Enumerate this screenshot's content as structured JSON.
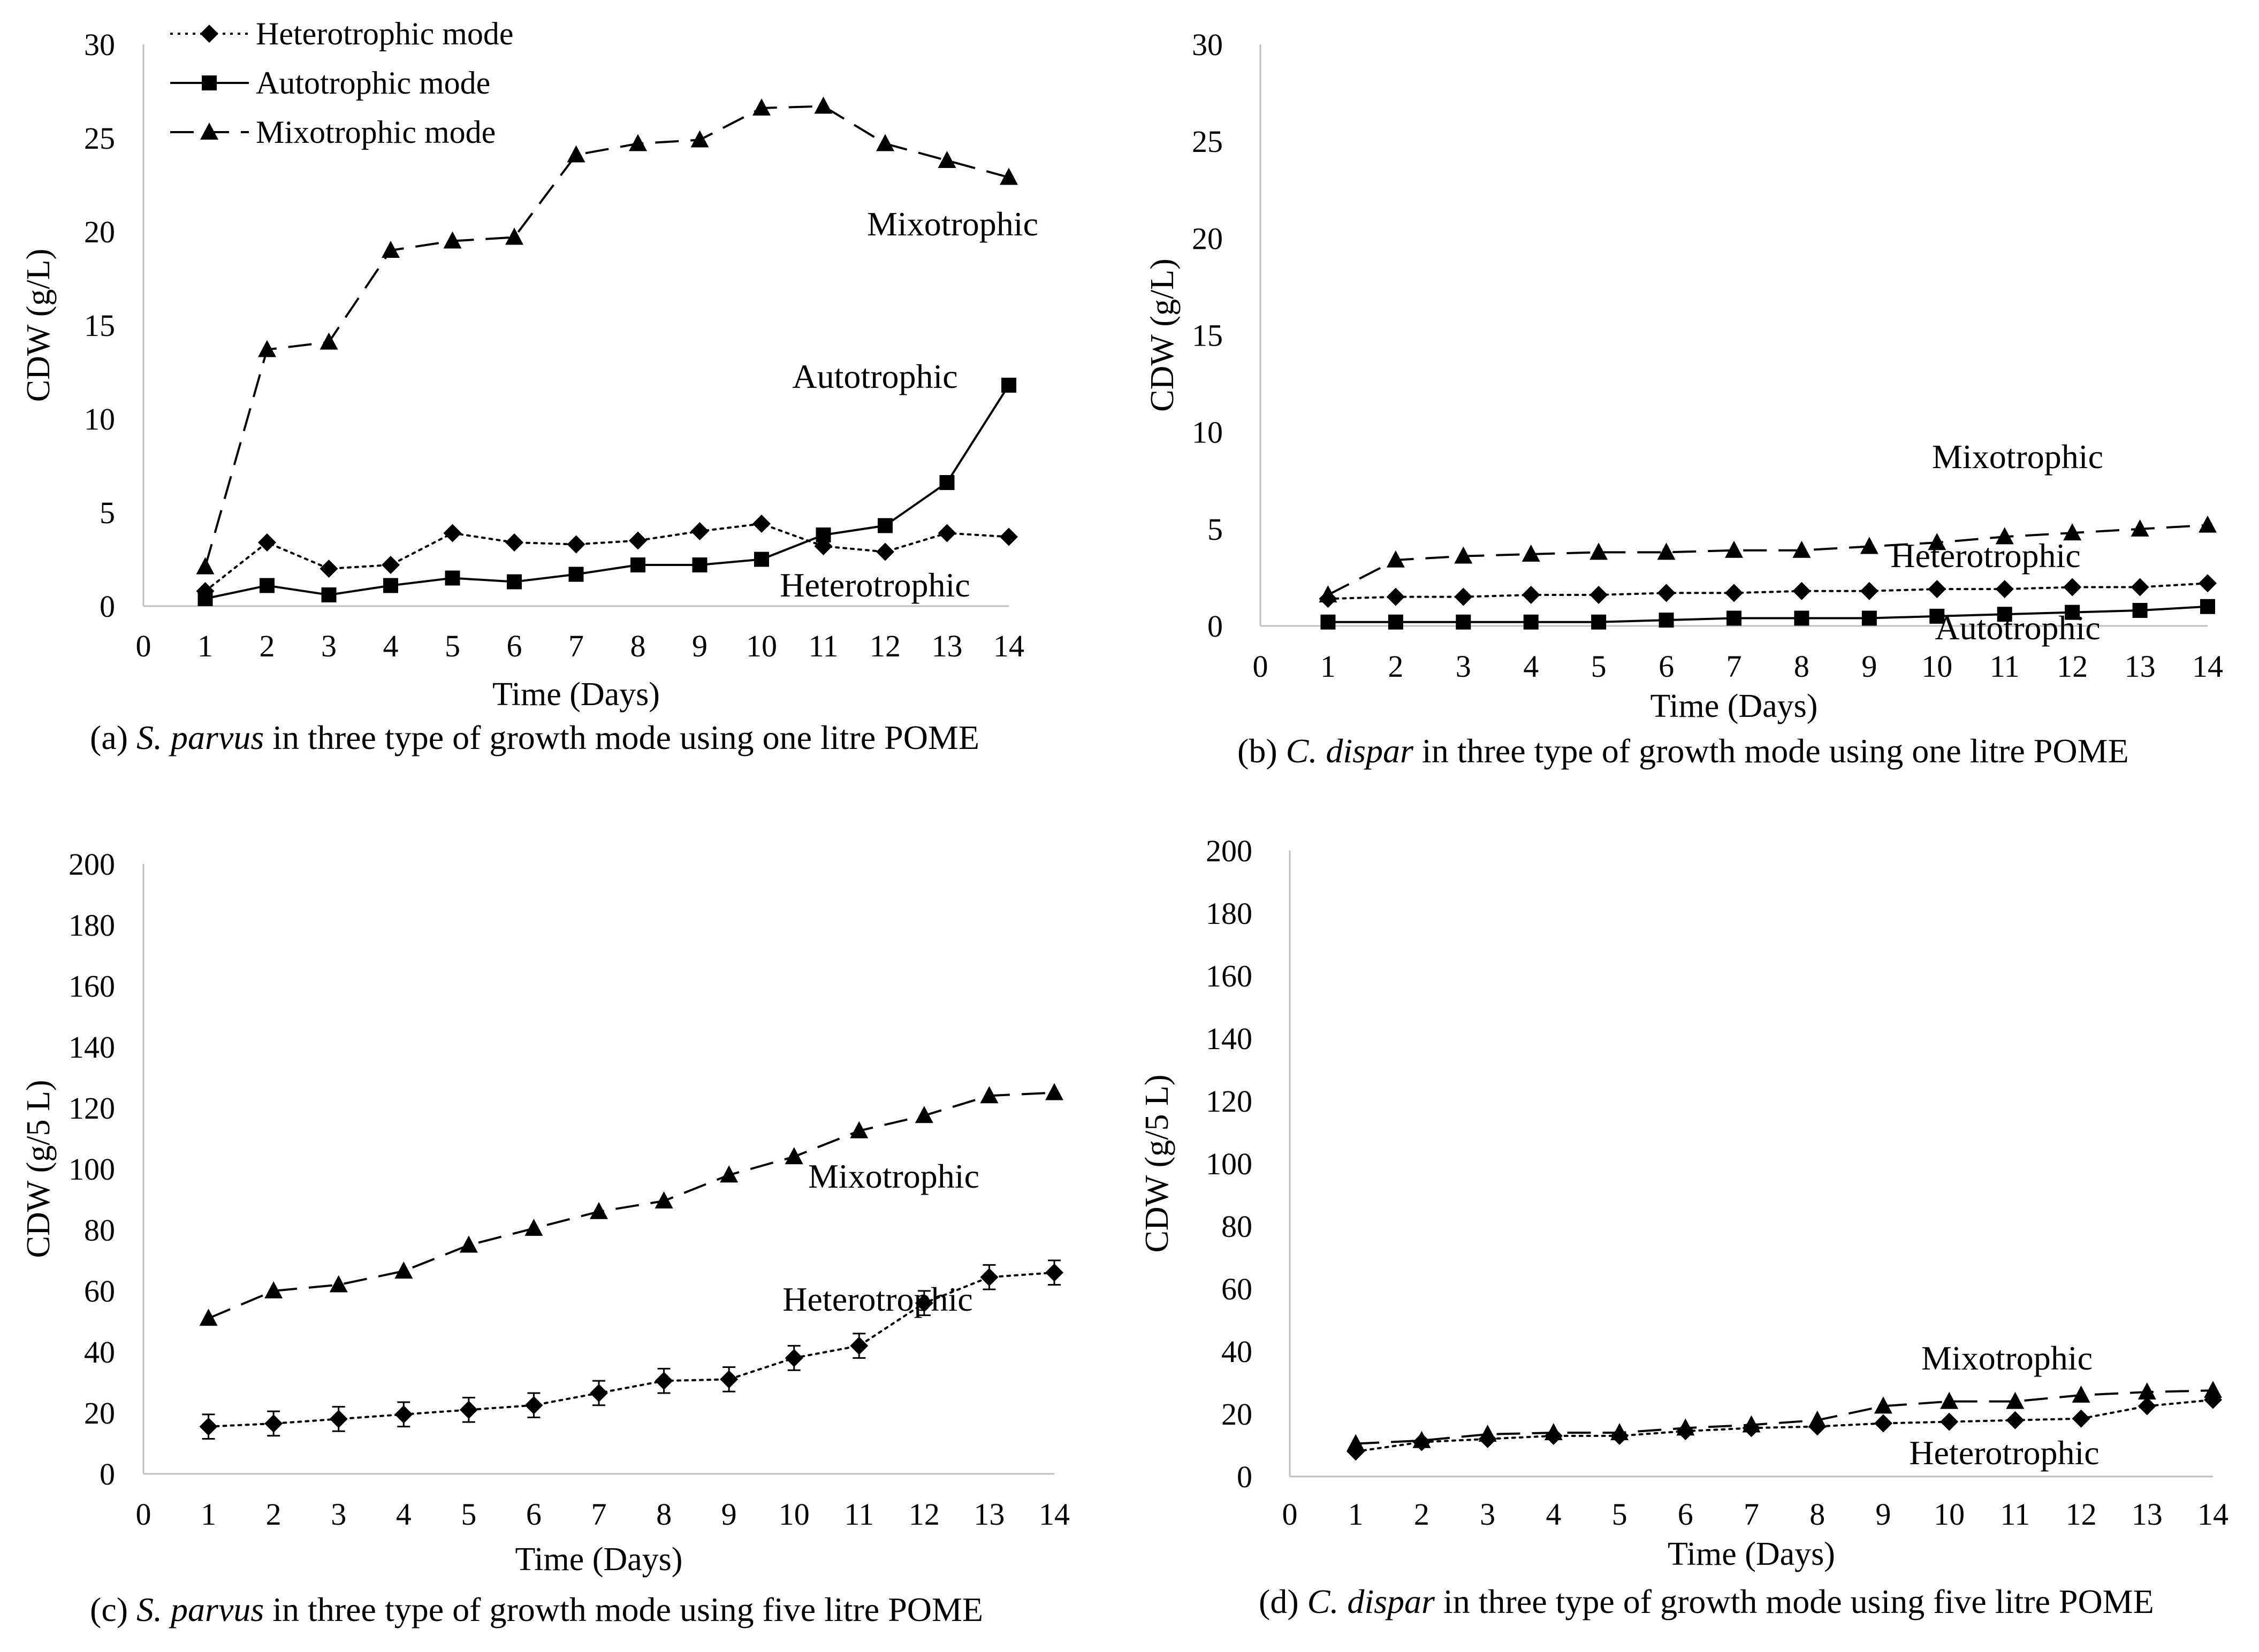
{
  "chart_data": [
    {
      "id": "a",
      "type": "line",
      "caption": {
        "prefix": "(a) ",
        "species": "S. parvus",
        "rest": " in three type of growth mode using one litre POME"
      },
      "xlabel": "Time (Days)",
      "ylabel": "CDW (g/L)",
      "xlim": [
        0,
        14
      ],
      "ylim": [
        0,
        30
      ],
      "xticks": [
        0,
        1,
        2,
        3,
        4,
        5,
        6,
        7,
        8,
        9,
        10,
        11,
        12,
        13,
        14
      ],
      "yticks": [
        0,
        5,
        10,
        15,
        20,
        25,
        30
      ],
      "x": [
        1,
        2,
        3,
        4,
        5,
        6,
        7,
        8,
        9,
        10,
        11,
        12,
        13,
        14
      ],
      "legend": [
        "Heterotrophic mode",
        "Autotrophic mode",
        "Mixotrophic mode"
      ],
      "series": [
        {
          "name": "Heterotrophic mode",
          "label": "Heterotrophic",
          "marker": "diamond",
          "dash": "dotted",
          "values": [
            0.8,
            3.4,
            2.0,
            2.2,
            3.9,
            3.4,
            3.3,
            3.5,
            4.0,
            4.4,
            3.2,
            2.9,
            3.9,
            3.7
          ]
        },
        {
          "name": "Autotrophic mode",
          "label": "Autotrophic",
          "marker": "square",
          "dash": "solid",
          "values": [
            0.4,
            1.1,
            0.6,
            1.1,
            1.5,
            1.3,
            1.7,
            2.2,
            2.2,
            2.5,
            3.8,
            4.3,
            6.6,
            11.8
          ]
        },
        {
          "name": "Mixotrophic mode",
          "label": "Mixotrophic",
          "marker": "triangle",
          "dash": "dashed",
          "values": [
            2.1,
            13.7,
            14.1,
            19.0,
            19.5,
            19.7,
            24.1,
            24.7,
            24.9,
            26.6,
            26.7,
            24.7,
            23.8,
            22.9
          ]
        }
      ]
    },
    {
      "id": "b",
      "type": "line",
      "caption": {
        "prefix": "(b) ",
        "species": "C. dispar",
        "rest": " in three type of growth mode using one litre POME"
      },
      "xlabel": "Time (Days)",
      "ylabel": "CDW (g/L)",
      "xlim": [
        0,
        14
      ],
      "ylim": [
        0,
        30
      ],
      "xticks": [
        0,
        1,
        2,
        3,
        4,
        5,
        6,
        7,
        8,
        9,
        10,
        11,
        12,
        13,
        14
      ],
      "yticks": [
        0,
        5,
        10,
        15,
        20,
        25,
        30
      ],
      "x": [
        1,
        2,
        3,
        4,
        5,
        6,
        7,
        8,
        9,
        10,
        11,
        12,
        13,
        14
      ],
      "series": [
        {
          "name": "Heterotrophic mode",
          "label": "Heterotrophic",
          "marker": "diamond",
          "dash": "dotted",
          "values": [
            1.4,
            1.5,
            1.5,
            1.6,
            1.6,
            1.7,
            1.7,
            1.8,
            1.8,
            1.9,
            1.9,
            2.0,
            2.0,
            2.2
          ]
        },
        {
          "name": "Autotrophic mode",
          "label": "Autotrophic",
          "marker": "square",
          "dash": "solid",
          "values": [
            0.2,
            0.2,
            0.2,
            0.2,
            0.2,
            0.3,
            0.4,
            0.4,
            0.4,
            0.5,
            0.6,
            0.7,
            0.8,
            1.0
          ]
        },
        {
          "name": "Mixotrophic mode",
          "label": "Mixotrophic",
          "marker": "triangle",
          "dash": "dashed",
          "values": [
            1.6,
            3.4,
            3.6,
            3.7,
            3.8,
            3.8,
            3.9,
            3.9,
            4.1,
            4.3,
            4.6,
            4.8,
            5.0,
            5.2
          ]
        }
      ]
    },
    {
      "id": "c",
      "type": "line",
      "caption": {
        "prefix": "(c) ",
        "species": "S. parvus",
        "rest": " in three type of growth mode using five litre POME"
      },
      "xlabel": "Time (Days)",
      "ylabel": "CDW (g/5 L)",
      "xlim": [
        0,
        14
      ],
      "ylim": [
        0,
        200
      ],
      "xticks": [
        0,
        1,
        2,
        3,
        4,
        5,
        6,
        7,
        8,
        9,
        10,
        11,
        12,
        13,
        14
      ],
      "yticks": [
        0,
        20,
        40,
        60,
        80,
        100,
        120,
        140,
        160,
        180,
        200
      ],
      "x": [
        1,
        2,
        3,
        4,
        5,
        6,
        7,
        8,
        9,
        10,
        11,
        12,
        13,
        14
      ],
      "series": [
        {
          "name": "Heterotrophic mode",
          "label": "Heterotrophic",
          "marker": "diamond",
          "dash": "dotted",
          "values": [
            15.5,
            16.5,
            18.0,
            19.5,
            21.0,
            22.5,
            26.5,
            30.5,
            31.0,
            38.0,
            42.0,
            56.0,
            64.5,
            66.0
          ],
          "errors": [
            4,
            4,
            4,
            4,
            4,
            4,
            4,
            4,
            4,
            4,
            4,
            4,
            4,
            4
          ]
        },
        {
          "name": "Mixotrophic mode",
          "label": "Mixotrophic",
          "marker": "triangle",
          "dash": "dashed",
          "values": [
            51.0,
            60.0,
            62.0,
            66.5,
            75.0,
            80.5,
            86.0,
            89.5,
            98.0,
            104.0,
            112.5,
            117.5,
            124.0,
            125.0
          ]
        }
      ]
    },
    {
      "id": "d",
      "type": "line",
      "caption": {
        "prefix": "(d) ",
        "species": "C. dispar",
        "rest": " in three type of growth mode using five litre POME"
      },
      "xlabel": "Time (Days)",
      "ylabel": "CDW (g/5 L)",
      "xlim": [
        0,
        14
      ],
      "ylim": [
        0,
        200
      ],
      "xticks": [
        0,
        1,
        2,
        3,
        4,
        5,
        6,
        7,
        8,
        9,
        10,
        11,
        12,
        13,
        14
      ],
      "yticks": [
        0,
        20,
        40,
        60,
        80,
        100,
        120,
        140,
        160,
        180,
        200
      ],
      "x": [
        1,
        2,
        3,
        4,
        5,
        6,
        7,
        8,
        9,
        10,
        11,
        12,
        13,
        14
      ],
      "series": [
        {
          "name": "Heterotrophic mode",
          "label": "Heterotrophic",
          "marker": "diamond",
          "dash": "dotted",
          "values": [
            8.0,
            11.0,
            12.0,
            13.0,
            13.0,
            14.5,
            15.5,
            16.0,
            17.0,
            17.5,
            18.0,
            18.5,
            22.5,
            24.5
          ]
        },
        {
          "name": "Mixotrophic mode",
          "label": "Mixotrophic",
          "marker": "triangle",
          "dash": "dashed",
          "values": [
            10.5,
            11.5,
            13.5,
            14.0,
            14.0,
            15.5,
            16.5,
            18.0,
            22.5,
            24.0,
            24.0,
            26.0,
            27.0,
            27.5
          ]
        }
      ]
    }
  ]
}
